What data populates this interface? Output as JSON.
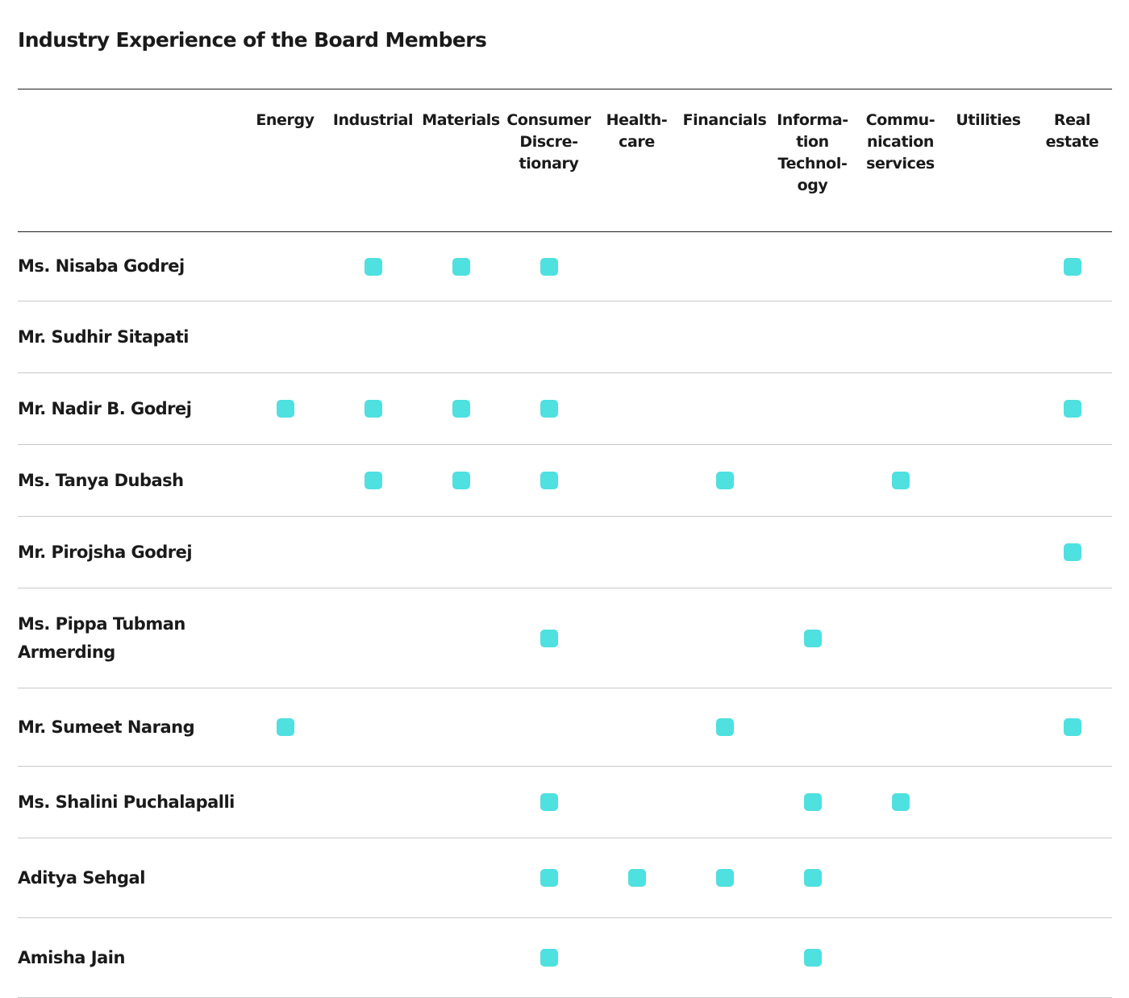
{
  "title": "Industry Experience of the Board Members",
  "marker_color": "#4fe0e0",
  "marker_icon": "rounded-square-check-marker",
  "columns": [
    {
      "label": "Energy"
    },
    {
      "label": "Industrial"
    },
    {
      "label": "Materials"
    },
    {
      "label": "Consumer Discre-tionary",
      "lines": [
        "Consumer",
        "Discre-",
        "tionary"
      ]
    },
    {
      "label": "Health-care",
      "lines": [
        "Health-",
        "care"
      ]
    },
    {
      "label": "Financials"
    },
    {
      "label": "Informa-tion Technol-ogy",
      "lines": [
        "Informa-",
        "tion",
        "Technol-",
        "ogy"
      ]
    },
    {
      "label": "Commu-nication services",
      "lines": [
        "Commu-",
        "nication",
        "services"
      ]
    },
    {
      "label": "Utilities"
    },
    {
      "label": "Real estate",
      "lines": [
        "Real",
        "estate"
      ]
    }
  ],
  "members": [
    {
      "name": "Ms. Nisaba Godrej",
      "experience": [
        false,
        true,
        true,
        true,
        false,
        false,
        false,
        false,
        false,
        true
      ]
    },
    {
      "name": "Mr. Sudhir Sitapati",
      "experience": [
        false,
        false,
        false,
        false,
        false,
        false,
        false,
        false,
        false,
        false
      ]
    },
    {
      "name": "Mr. Nadir B. Godrej",
      "experience": [
        true,
        true,
        true,
        true,
        false,
        false,
        false,
        false,
        false,
        true
      ]
    },
    {
      "name": "Ms. Tanya Dubash",
      "experience": [
        false,
        true,
        true,
        true,
        false,
        true,
        false,
        true,
        false,
        false
      ]
    },
    {
      "name": "Mr. Pirojsha Godrej",
      "experience": [
        false,
        false,
        false,
        false,
        false,
        false,
        false,
        false,
        false,
        true
      ]
    },
    {
      "name": "Ms. Pippa Tubman Armerding",
      "experience": [
        false,
        false,
        false,
        true,
        false,
        false,
        true,
        false,
        false,
        false
      ]
    },
    {
      "name": "Mr. Sumeet Narang",
      "experience": [
        true,
        false,
        false,
        false,
        false,
        true,
        false,
        false,
        false,
        true
      ]
    },
    {
      "name": "Ms. Shalini Puchalapalli",
      "experience": [
        false,
        false,
        false,
        true,
        false,
        false,
        true,
        true,
        false,
        false
      ]
    },
    {
      "name": "Aditya Sehgal",
      "experience": [
        false,
        false,
        false,
        true,
        true,
        true,
        true,
        false,
        false,
        false
      ]
    },
    {
      "name": "Amisha Jain",
      "experience": [
        false,
        false,
        false,
        true,
        false,
        false,
        true,
        false,
        false,
        false
      ]
    }
  ]
}
